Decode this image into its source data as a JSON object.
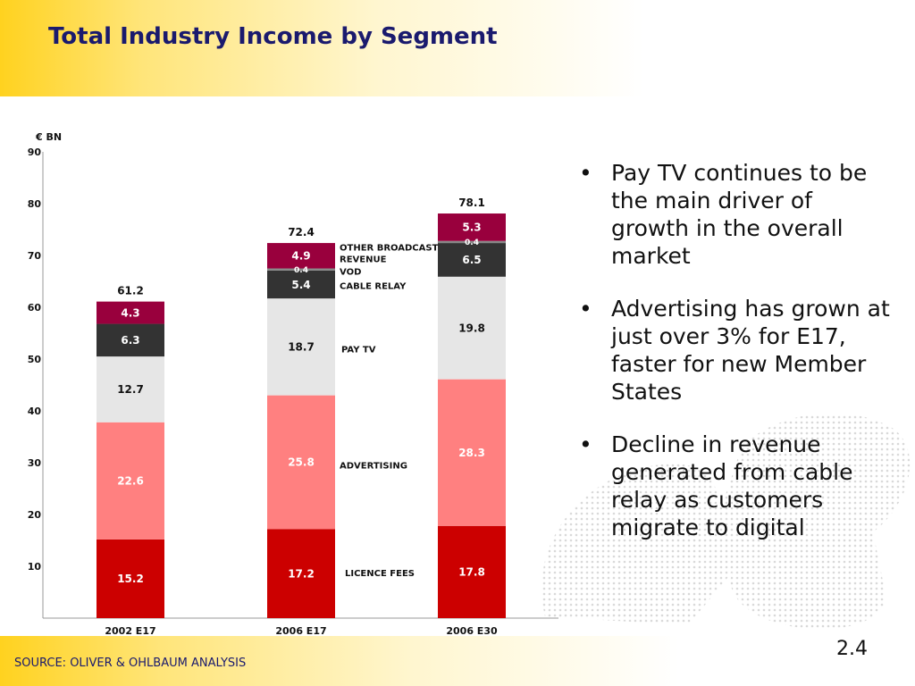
{
  "title": "Total Industry Income by Segment",
  "source": "SOURCE: OLIVER & OHLBAUM ANALYSIS",
  "page_number": "2.4",
  "bullets": [
    "Pay TV continues to be the main driver of growth in the overall market",
    "Advertising has grown at just over 3% for E17, faster for new Member States",
    "Decline in revenue generated from cable relay as customers migrate to digital"
  ],
  "colors": {
    "licence_fees": "#cc0000",
    "advertising": "#ff8080",
    "pay_tv": "#e6e6e6",
    "cable_relay": "#333333",
    "vod": "#888888",
    "other_broadcast_revenue": "#99003d",
    "title": "#1a1a6e",
    "accent": "#ffd21f"
  },
  "chart_data": {
    "type": "bar",
    "stacked": true,
    "unit_label": "€ BN",
    "categories": [
      "2002 E17",
      "2006 E17",
      "2006 E30"
    ],
    "totals": [
      "61.2",
      "72.4",
      "78.1"
    ],
    "yticks": [
      10,
      20,
      30,
      40,
      50,
      60,
      70,
      80,
      90
    ],
    "ylim": [
      0,
      90
    ],
    "series": [
      {
        "name": "LICENCE FEES",
        "key": "licence_fees",
        "values": [
          15.2,
          17.2,
          17.8
        ]
      },
      {
        "name": "ADVERTISING",
        "key": "advertising",
        "values": [
          22.6,
          25.8,
          28.3
        ]
      },
      {
        "name": "PAY TV",
        "key": "pay_tv",
        "values": [
          12.7,
          18.7,
          19.8
        ]
      },
      {
        "name": "CABLE RELAY",
        "key": "cable_relay",
        "values": [
          6.3,
          5.4,
          6.5
        ]
      },
      {
        "name": "VOD",
        "key": "vod",
        "values": [
          0,
          0.4,
          0.4
        ]
      },
      {
        "name": "OTHER BROADCAST REVENUE",
        "key": "other_broadcast_revenue",
        "values": [
          4.3,
          4.9,
          5.3
        ]
      }
    ],
    "legend": "inline labels beside middle bar"
  }
}
